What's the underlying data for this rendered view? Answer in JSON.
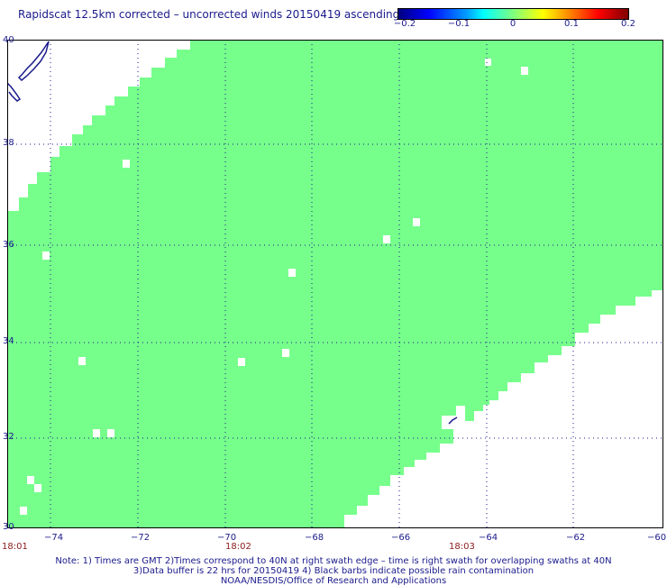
{
  "title": "Rapidscat 12.5km corrected – uncorrected winds 20150419 ascending",
  "colorbar": {
    "ticks": [
      "−0.2",
      "−0.1",
      "0",
      "0.1",
      "0.2"
    ],
    "colors": [
      "#00007f",
      "#0000ff",
      "#00ffff",
      "#7fff7f",
      "#ffff00",
      "#ff8000",
      "#7f0000"
    ]
  },
  "map": {
    "lon_range": [
      -75,
      -60
    ],
    "lat_range": [
      30,
      40
    ],
    "lon_ticks": [
      "−74",
      "−72",
      "−70",
      "−68",
      "−66",
      "−64",
      "−62",
      "−60"
    ],
    "lat_ticks": [
      "40",
      "38",
      "36",
      "34",
      "32",
      "30"
    ],
    "swath_color": "#77ff8c",
    "land_color": "#1a1a8c",
    "grid": "dotted"
  },
  "time_labels": [
    "18:01",
    "18:02",
    "18:03"
  ],
  "notes": [
    "Note: 1) Times are GMT 2)Times correspond to 40N at right swath edge – time is right swath for overlapping swaths at 40N",
    "3)Data buffer is 22 hrs for 20150419 4) Black barbs indicate possible rain contamination",
    "NOAA/NESDIS/Office of Research and Applications"
  ]
}
